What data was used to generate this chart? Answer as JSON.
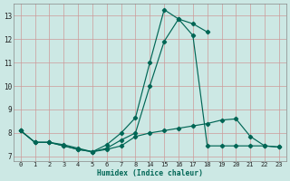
{
  "bg_color": "#cce8e4",
  "grid_color": "#cc9999",
  "line_color": "#006655",
  "xlabel": "Humidex (Indice chaleur)",
  "ylim": [
    6.8,
    13.5
  ],
  "yticks": [
    7,
    8,
    9,
    10,
    11,
    12,
    13
  ],
  "xtick_labels": [
    "0",
    "1",
    "2",
    "3",
    "4",
    "5",
    "6",
    "7",
    "8",
    "14",
    "15",
    "16",
    "17",
    "18",
    "19",
    "20",
    "21",
    "22",
    "23"
  ],
  "curve1_xi": [
    0,
    1,
    2,
    3,
    4,
    5,
    6,
    7,
    8,
    9,
    10,
    11,
    12,
    13
  ],
  "curve1_y": [
    8.1,
    7.6,
    7.6,
    7.5,
    7.35,
    7.2,
    7.5,
    8.0,
    8.65,
    11.0,
    13.25,
    12.85,
    12.65,
    12.3
  ],
  "curve2_xi": [
    0,
    1,
    2,
    3,
    4,
    5,
    6,
    7,
    8,
    9,
    10,
    11,
    12,
    13,
    14,
    15,
    16,
    17,
    18
  ],
  "curve2_y": [
    8.1,
    7.6,
    7.6,
    7.45,
    7.3,
    7.2,
    7.3,
    7.45,
    7.85,
    8.0,
    8.1,
    8.2,
    8.3,
    8.4,
    8.55,
    8.6,
    7.85,
    7.45,
    7.4
  ],
  "curve3_xi": [
    0,
    1,
    2,
    3,
    4,
    5,
    6,
    7,
    8,
    9,
    10,
    11,
    12,
    13,
    14,
    15,
    16,
    17,
    18
  ],
  "curve3_y": [
    8.1,
    7.6,
    7.6,
    7.45,
    7.3,
    7.2,
    7.35,
    7.7,
    8.0,
    10.0,
    11.9,
    12.85,
    12.15,
    7.45,
    7.45,
    7.45,
    7.45,
    7.45,
    7.4
  ]
}
